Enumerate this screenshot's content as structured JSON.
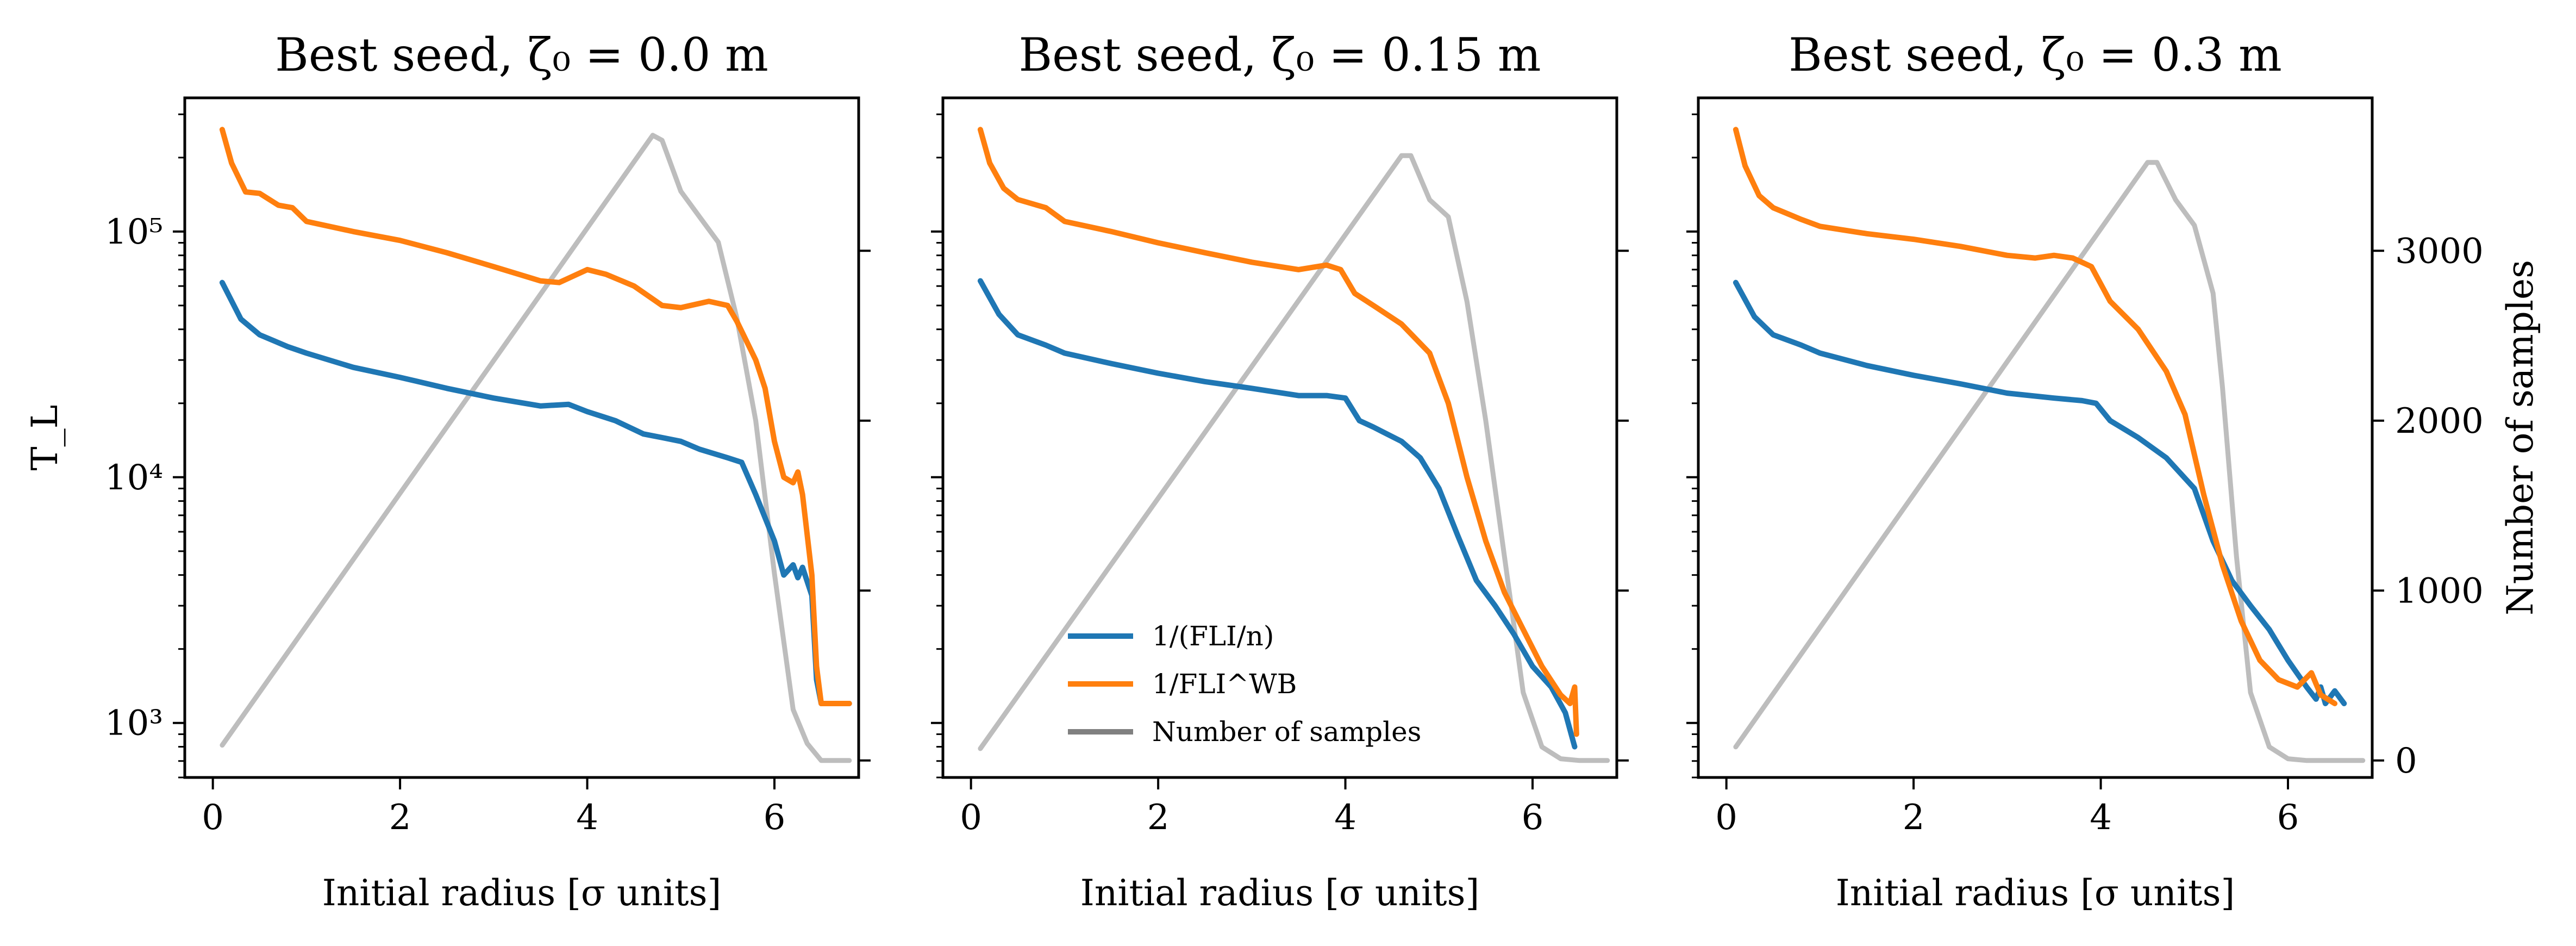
{
  "chart_data": [
    {
      "type": "line",
      "title": "Best seed, ζ₀ = 0.0 m",
      "xlabel": "Initial radius [σ units]",
      "ylabel": "T_L",
      "yscale": "log",
      "xlim": [
        -0.3,
        6.9
      ],
      "ylim": [
        600,
        350000
      ],
      "x_ticks": [
        "0",
        "2",
        "4",
        "6"
      ],
      "y_ticks": [
        "10³",
        "10⁴",
        "10⁵"
      ],
      "secondary_ylim": [
        -100,
        3900
      ],
      "series": [
        {
          "name": "1/(FLI/n)",
          "color": "#1f77b4",
          "x": [
            0.1,
            0.3,
            0.5,
            0.8,
            1.0,
            1.5,
            2.0,
            2.5,
            3.0,
            3.5,
            3.8,
            4.0,
            4.3,
            4.6,
            4.8,
            5.0,
            5.2,
            5.5,
            5.65,
            5.8,
            6.0,
            6.1,
            6.2,
            6.25,
            6.3,
            6.4,
            6.45,
            6.5,
            6.8
          ],
          "y": [
            62000,
            44000,
            38000,
            34000,
            32000,
            28000,
            25500,
            23000,
            21000,
            19500,
            19800,
            18500,
            17000,
            15000,
            14500,
            14000,
            13000,
            12000,
            11500,
            8500,
            5500,
            4000,
            4400,
            3900,
            4300,
            3300,
            1500,
            1200,
            1200
          ]
        },
        {
          "name": "1/FLI^WB",
          "color": "#ff7f0e",
          "x": [
            0.1,
            0.2,
            0.35,
            0.5,
            0.7,
            0.85,
            1.0,
            1.5,
            2.0,
            2.5,
            3.0,
            3.5,
            3.7,
            4.0,
            4.2,
            4.5,
            4.8,
            5.0,
            5.3,
            5.5,
            5.6,
            5.8,
            5.9,
            6.0,
            6.1,
            6.2,
            6.25,
            6.3,
            6.4,
            6.45,
            6.5,
            6.8
          ],
          "y": [
            260000,
            190000,
            145000,
            143000,
            128000,
            125000,
            110000,
            100000,
            92000,
            82000,
            72000,
            63000,
            62000,
            70000,
            67000,
            60000,
            50000,
            49000,
            52000,
            50000,
            43000,
            30000,
            23000,
            14000,
            10000,
            9500,
            10500,
            8500,
            4000,
            1700,
            1200,
            1200
          ]
        },
        {
          "name": "Number of samples",
          "color": "#bdbdbd",
          "secondary_axis": true,
          "x": [
            0.1,
            4.7,
            4.8,
            5.0,
            5.2,
            5.4,
            5.6,
            5.8,
            6.0,
            6.2,
            6.35,
            6.5,
            6.8
          ],
          "y": [
            90,
            3680,
            3650,
            3350,
            3200,
            3050,
            2600,
            2000,
            1100,
            300,
            100,
            0,
            0
          ]
        }
      ]
    },
    {
      "type": "line",
      "title": "Best seed, ζ₀ = 0.15 m",
      "xlabel": "Initial radius [σ units]",
      "ylabel": "",
      "yscale": "log",
      "xlim": [
        -0.3,
        6.9
      ],
      "ylim": [
        600,
        350000
      ],
      "x_ticks": [
        "0",
        "2",
        "4",
        "6"
      ],
      "secondary_ylim": [
        -100,
        3900
      ],
      "legend_position": "lower center",
      "series": [
        {
          "name": "1/(FLI/n)",
          "color": "#1f77b4",
          "x": [
            0.1,
            0.3,
            0.5,
            0.8,
            1.0,
            1.5,
            2.0,
            2.5,
            3.0,
            3.5,
            3.8,
            4.0,
            4.15,
            4.3,
            4.6,
            4.8,
            5.0,
            5.2,
            5.4,
            5.6,
            5.8,
            6.0,
            6.2,
            6.35,
            6.45
          ],
          "y": [
            63000,
            46000,
            38000,
            34500,
            32000,
            29000,
            26500,
            24500,
            23000,
            21500,
            21500,
            21000,
            17000,
            16000,
            14000,
            12000,
            9000,
            5800,
            3800,
            3000,
            2300,
            1700,
            1400,
            1100,
            800
          ]
        },
        {
          "name": "1/FLI^WB",
          "color": "#ff7f0e",
          "x": [
            0.1,
            0.2,
            0.35,
            0.5,
            0.8,
            1.0,
            1.5,
            2.0,
            2.5,
            3.0,
            3.5,
            3.8,
            3.95,
            4.1,
            4.3,
            4.6,
            4.9,
            5.1,
            5.3,
            5.5,
            5.7,
            5.9,
            6.1,
            6.3,
            6.4,
            6.45,
            6.47
          ],
          "y": [
            260000,
            190000,
            150000,
            135000,
            125000,
            110000,
            100000,
            90000,
            82000,
            75000,
            70000,
            73000,
            70000,
            56000,
            50000,
            42000,
            32000,
            20000,
            10000,
            5500,
            3400,
            2400,
            1700,
            1300,
            1200,
            1400,
            900
          ]
        },
        {
          "name": "Number of samples",
          "color": "#bdbdbd",
          "secondary_axis": true,
          "x": [
            0.1,
            4.6,
            4.7,
            4.9,
            5.1,
            5.3,
            5.5,
            5.7,
            5.9,
            6.1,
            6.3,
            6.5,
            6.8
          ],
          "y": [
            70,
            3560,
            3560,
            3300,
            3200,
            2700,
            2000,
            1200,
            400,
            80,
            10,
            0,
            0
          ]
        }
      ]
    },
    {
      "type": "line",
      "title": "Best seed, ζ₀ = 0.3 m",
      "xlabel": "Initial radius [σ units]",
      "ylabel": "",
      "yscale": "log",
      "xlim": [
        -0.3,
        6.9
      ],
      "ylim": [
        600,
        350000
      ],
      "x_ticks": [
        "0",
        "2",
        "4",
        "6"
      ],
      "secondary_ylim": [
        -100,
        3900
      ],
      "secondary_ylabel": "Number of samples",
      "secondary_ticks": [
        "0",
        "1000",
        "2000",
        "3000"
      ],
      "series": [
        {
          "name": "1/(FLI/n)",
          "color": "#1f77b4",
          "x": [
            0.1,
            0.3,
            0.5,
            0.8,
            1.0,
            1.5,
            2.0,
            2.5,
            3.0,
            3.5,
            3.8,
            3.95,
            4.1,
            4.4,
            4.7,
            5.0,
            5.2,
            5.4,
            5.6,
            5.8,
            6.0,
            6.2,
            6.3,
            6.35,
            6.4,
            6.5,
            6.6
          ],
          "y": [
            62000,
            45000,
            38000,
            34500,
            32000,
            28500,
            26000,
            24000,
            22000,
            21000,
            20500,
            20000,
            17000,
            14500,
            12000,
            9000,
            5500,
            3800,
            3000,
            2400,
            1800,
            1400,
            1250,
            1400,
            1200,
            1350,
            1200
          ]
        },
        {
          "name": "1/FLI^WB",
          "color": "#ff7f0e",
          "x": [
            0.1,
            0.2,
            0.35,
            0.5,
            0.8,
            1.0,
            1.5,
            2.0,
            2.5,
            3.0,
            3.3,
            3.5,
            3.7,
            3.9,
            4.1,
            4.4,
            4.7,
            4.9,
            5.1,
            5.3,
            5.5,
            5.7,
            5.9,
            6.1,
            6.25,
            6.35,
            6.5
          ],
          "y": [
            260000,
            185000,
            140000,
            125000,
            112000,
            105000,
            98000,
            93000,
            87000,
            80000,
            78000,
            80000,
            78000,
            72000,
            52000,
            40000,
            27000,
            18000,
            8500,
            4400,
            2600,
            1800,
            1500,
            1400,
            1600,
            1300,
            1200
          ]
        },
        {
          "name": "Number of samples",
          "color": "#bdbdbd",
          "secondary_axis": true,
          "x": [
            0.1,
            4.5,
            4.6,
            4.8,
            5.0,
            5.2,
            5.3,
            5.45,
            5.6,
            5.8,
            6.0,
            6.2,
            6.8
          ],
          "y": [
            80,
            3520,
            3520,
            3300,
            3150,
            2750,
            2200,
            1200,
            400,
            80,
            10,
            0,
            0
          ]
        }
      ]
    }
  ]
}
